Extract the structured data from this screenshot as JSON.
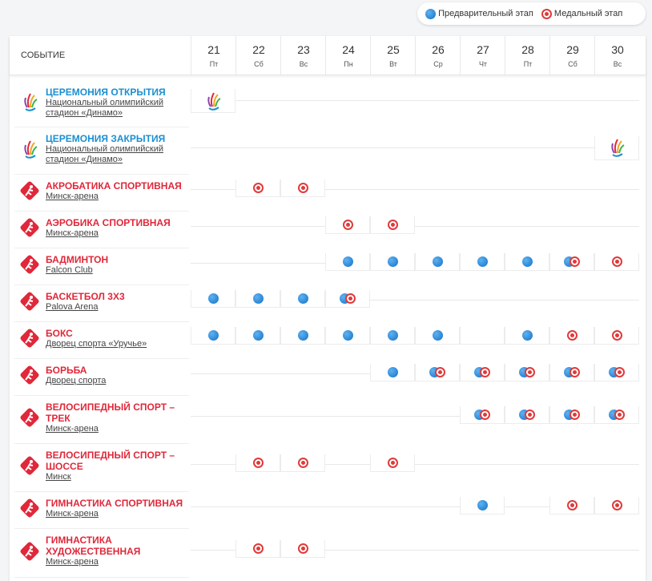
{
  "legend": {
    "preliminary": "Предварительный этап",
    "medal": "Медальный этап"
  },
  "header": {
    "event": "СОБЫТИЕ",
    "days": [
      {
        "num": "21",
        "wd": "Пт"
      },
      {
        "num": "22",
        "wd": "Сб"
      },
      {
        "num": "23",
        "wd": "Вс"
      },
      {
        "num": "24",
        "wd": "Пн"
      },
      {
        "num": "25",
        "wd": "Вт"
      },
      {
        "num": "26",
        "wd": "Ср"
      },
      {
        "num": "27",
        "wd": "Чт"
      },
      {
        "num": "28",
        "wd": "Пт"
      },
      {
        "num": "29",
        "wd": "Сб"
      },
      {
        "num": "30",
        "wd": "Вс"
      }
    ]
  },
  "events": [
    {
      "name": "ЦЕРЕМОНИЯ ОТКРЫТИЯ",
      "venue": "Национальный олимпийский стадион «Динамо»"
    },
    {
      "name": "ЦЕРЕМОНИЯ ЗАКРЫТИЯ",
      "venue": "Национальный олимпийский стадион «Динамо»"
    },
    {
      "name": "АКРОБАТИКА СПОРТИВНАЯ",
      "venue": "Минск-арена"
    },
    {
      "name": "АЭРОБИКА СПОРТИВНАЯ",
      "venue": "Минск-арена"
    },
    {
      "name": "БАДМИНТОН",
      "venue": "Falcon Club"
    },
    {
      "name": "БАСКЕТБОЛ 3Х3",
      "venue": "Palova Arena"
    },
    {
      "name": "БОКС",
      "venue": "Дворец спорта «Уручье»"
    },
    {
      "name": "БОРЬБА",
      "venue": "Дворец спорта"
    },
    {
      "name": "ВЕЛОСИПЕДНЫЙ СПОРТ – ТРЕК",
      "venue": "Минск-арена"
    },
    {
      "name": "ВЕЛОСИПЕДНЫЙ СПОРТ – ШОССЕ",
      "venue": "Минск"
    },
    {
      "name": "ГИМНАСТИКА СПОРТИВНАЯ",
      "venue": "Минск-арена"
    },
    {
      "name": "ГИМНАСТИКА ХУДОЖЕСТВЕННАЯ",
      "venue": "Минск-арена"
    }
  ]
}
